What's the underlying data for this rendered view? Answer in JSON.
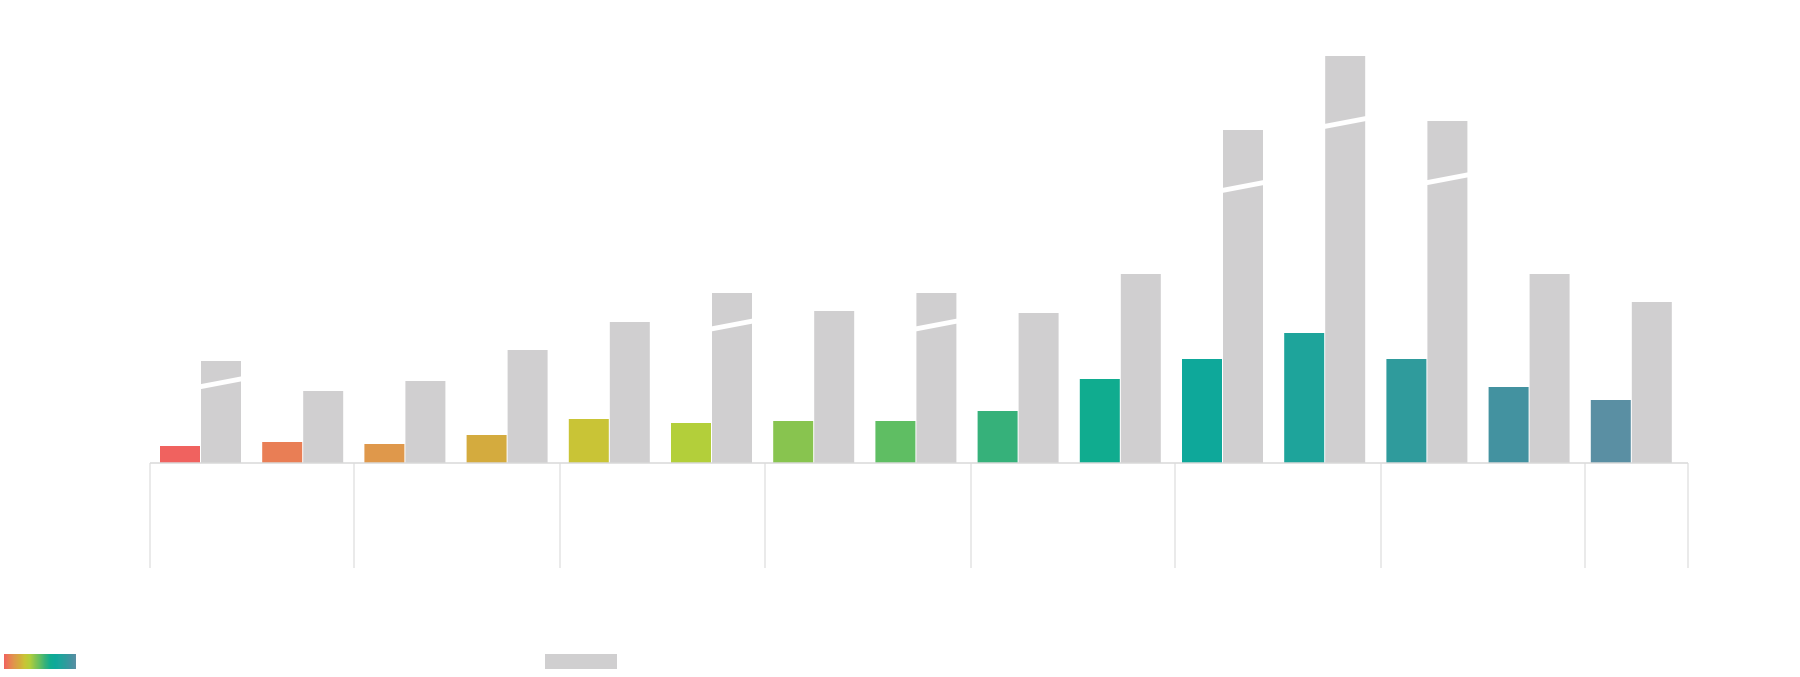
{
  "chart_data": {
    "type": "bar",
    "title": "",
    "xlabel": "",
    "ylabel": "",
    "grid": false,
    "legend_placement": "bottom-left",
    "categories": [
      "",
      "",
      "",
      "",
      "",
      "",
      "",
      "",
      "",
      "",
      "",
      "",
      "",
      "",
      ""
    ],
    "ylim": [
      0,
      420
    ],
    "series": [
      {
        "values": [
          17,
          21,
          19,
          28,
          44,
          40,
          42,
          42,
          52,
          84,
          104,
          130,
          104,
          76,
          63
        ],
        "colors": [
          "#f0625f",
          "#e97e55",
          "#df984b",
          "#d4ab3e",
          "#c9c436",
          "#b3cf3a",
          "#88c44f",
          "#5fbe63",
          "#36b17a",
          "#10ac8f",
          "#0ea89a",
          "#1ea49b",
          "#2f9b9c",
          "#4392a0",
          "#5a8fa3"
        ]
      },
      {
        "values": [
          102,
          72,
          82,
          113,
          141,
          170,
          152,
          170,
          150,
          189,
          333,
          407,
          342,
          189,
          161
        ],
        "axis_break": [
          true,
          false,
          false,
          false,
          false,
          true,
          false,
          true,
          false,
          false,
          true,
          true,
          true,
          false,
          false
        ],
        "color": "#d0cfd0"
      }
    ],
    "legend": [
      {
        "swatch": "gradient"
      },
      {
        "swatch": "#d0cfd0"
      }
    ]
  }
}
